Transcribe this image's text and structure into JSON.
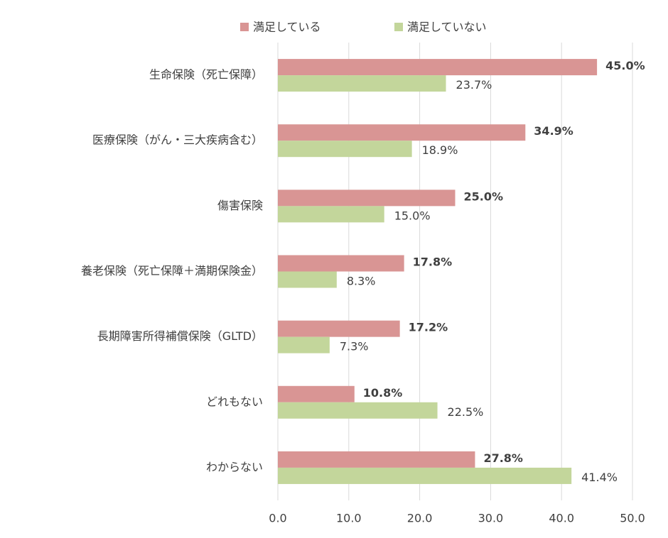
{
  "chart_data": {
    "type": "bar",
    "orientation": "horizontal",
    "categories": [
      "生命保険（死亡保障）",
      "医療保険（がん・三大疾病含む）",
      "傷害保険",
      "養老保険（死亡保障＋満期保険金）",
      "長期障害所得補償保険（GLTD）",
      "どれもない",
      "わからない"
    ],
    "series": [
      {
        "name": "満足している",
        "color": "#d99594",
        "values": [
          45.0,
          34.9,
          25.0,
          17.8,
          17.2,
          10.8,
          27.8
        ],
        "value_labels": [
          "45.0%",
          "34.9%",
          "25.0%",
          "17.8%",
          "17.2%",
          "10.8%",
          "27.8%"
        ]
      },
      {
        "name": "満足していない",
        "color": "#c3d69b",
        "values": [
          23.7,
          18.9,
          15.0,
          8.3,
          7.3,
          22.5,
          41.4
        ],
        "value_labels": [
          "23.7%",
          "18.9%",
          "15.0%",
          "8.3%",
          "7.3%",
          "22.5%",
          "41.4%"
        ]
      }
    ],
    "xlim": [
      0,
      50
    ],
    "xticks": [
      {
        "value": 0,
        "label": "0.0"
      },
      {
        "value": 10,
        "label": "10.0"
      },
      {
        "value": 20,
        "label": "20.0"
      },
      {
        "value": 30,
        "label": "30.0"
      },
      {
        "value": 40,
        "label": "40.0"
      },
      {
        "value": 50,
        "label": "50.0"
      }
    ],
    "grid": true,
    "legend": "top"
  }
}
